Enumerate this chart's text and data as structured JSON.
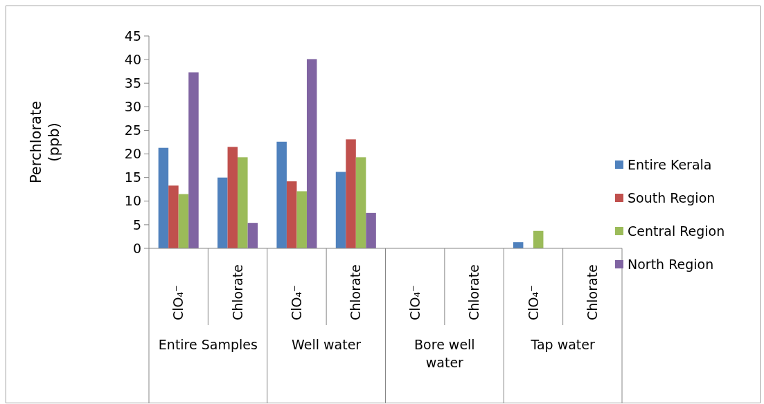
{
  "chart_data": {
    "type": "bar",
    "ylabel": "Perchlorate (ppb)",
    "categories": [
      "ClO₄⁻",
      "Chlorate",
      "ClO₄⁻",
      "Chlorate",
      "ClO₄⁻",
      "Chlorate",
      "ClO₄⁻",
      "Chlorate"
    ],
    "series": [
      {
        "name": "Entire Kerala",
        "color": "#4f81bd",
        "values": [
          21.3,
          15,
          22.6,
          16.2,
          null,
          null,
          1.3,
          null
        ]
      },
      {
        "name": "South Region",
        "color": "#c0504d",
        "values": [
          13.3,
          21.5,
          14.2,
          23.1,
          null,
          null,
          null,
          null
        ]
      },
      {
        "name": "Central Region",
        "color": "#9bbb59",
        "values": [
          11.5,
          19.3,
          12.1,
          19.3,
          null,
          null,
          3.7,
          null
        ]
      },
      {
        "name": "North Region",
        "color": "#8064a2",
        "values": [
          37.3,
          5.4,
          40.1,
          7.5,
          null,
          null,
          null,
          null
        ]
      }
    ],
    "annotations": [
      "Entire Samples",
      "Well water",
      "Bore well water",
      "Tap water"
    ],
    "ylim": [
      0,
      45
    ],
    "yticks": [
      0,
      5,
      10,
      15,
      20,
      25,
      30,
      35,
      40,
      45
    ],
    "grid": false,
    "legend": "right"
  }
}
